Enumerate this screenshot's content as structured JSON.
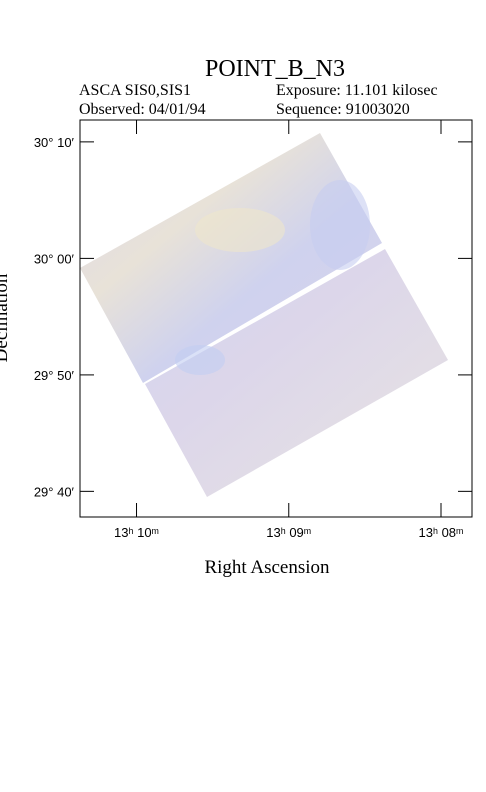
{
  "chart_data": {
    "type": "image",
    "title": "POINT_B_N3",
    "annotations": [
      "ASCA SIS0,SIS1",
      "Exposure: 11.101 kilosec",
      "Observed: 04/01/94",
      "Sequence: 91003020"
    ],
    "x_label": "Right Ascension",
    "y_label": "Declination",
    "xlim": [
      13.1729,
      13.1299
    ],
    "xticks": [
      {
        "value": 13.1667,
        "label": "13ʰ 10ᵐ"
      },
      {
        "value": 13.15,
        "label": "13ʰ 09ᵐ"
      },
      {
        "value": 13.1333,
        "label": "13ʰ 08ᵐ"
      }
    ],
    "ylim": [
      29.63,
      30.198
    ],
    "yticks": [
      {
        "value": 30.1667,
        "label": "30° 10′"
      },
      {
        "value": 30,
        "label": "30° 00′"
      },
      {
        "value": 29.8333,
        "label": "29° 50′"
      },
      {
        "value": 29.6667,
        "label": "29° 40′"
      }
    ]
  }
}
